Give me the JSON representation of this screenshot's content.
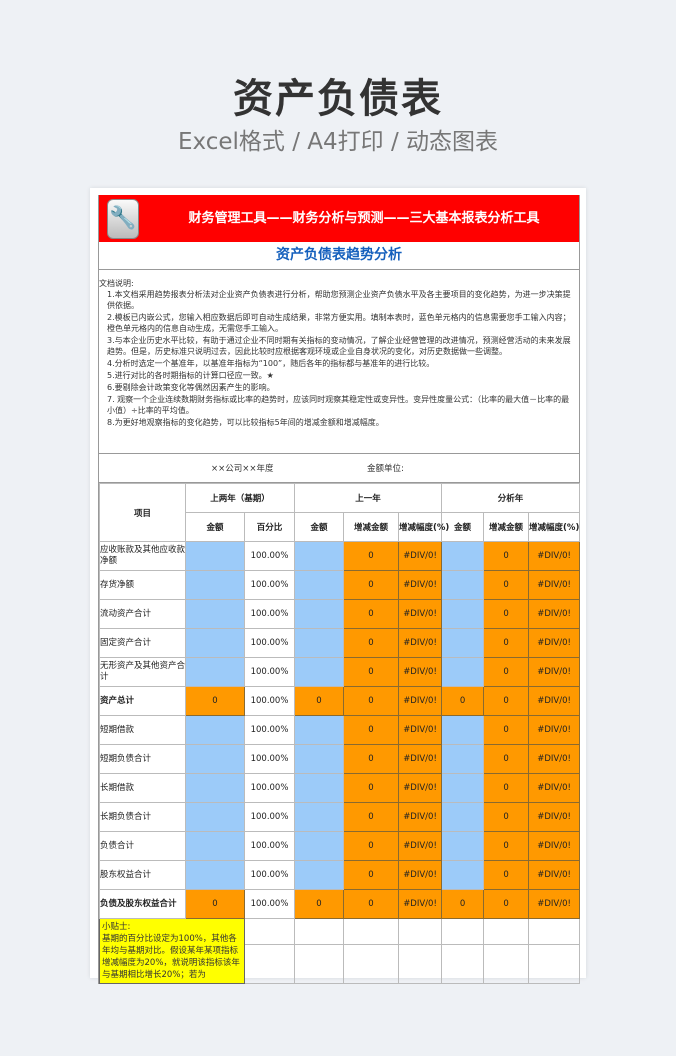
{
  "hero": {
    "title": "资产负债表",
    "subtitle": "Excel格式 / A4打印 / 动态图表"
  },
  "banner": {
    "title": "财务管理工具——财务分析与预测——三大基本报表分析工具",
    "icon": "wrench-icon"
  },
  "sheet_title": "资产负债表趋势分析",
  "notes": {
    "heading": "文档说明:",
    "items": [
      "1.本文档采用趋势报表分析法对企业资产负债表进行分析，帮助您预测企业资产负债水平及各主要项目的变化趋势，为进一步决策提供依据。",
      "2.模板已内嵌公式，您输入相应数据后即可自动生成结果，非常方便实用。填制本表时，蓝色单元格内的信息需要您手工输入内容；橙色单元格内的信息自动生成，无需您手工输入。",
      "3.与本企业历史水平比较，有助于通过企业不同时期有关指标的变动情况，了解企业经营管理的改进情况，预测经营活动的未来发展趋势。但是，历史标准只说明过去，因此比较时应根据客观环境或企业自身状况的变化，对历史数据做一些调整。",
      "4.分析时选定一个基准年，以基准年指标为“100”，随后各年的指标都与基准年的进行比较。",
      "5.进行对比的各时期指标的计算口径应一致。★",
      "6.要剔除会计政策变化等偶然因素产生的影响。",
      "7. 观察一个企业连续数期财务指标或比率的趋势时，应该同时观察其稳定性或变异性。变异性度量公式：（比率的最大值－比率的最小值）÷比率的平均值。",
      "8.为更好地观察指标的变化趋势，可以比较指标5年间的增减金额和增减幅度。"
    ]
  },
  "company": "××公司××年度",
  "unit": "金额单位:",
  "header": {
    "item": "项目",
    "groups": [
      "上两年（基期）",
      "上一年",
      "分析年"
    ],
    "cols": [
      "金额",
      "百分比",
      "金额",
      "增减金额",
      "增减幅度(%)",
      "金额",
      "增减金额",
      "增减幅度(%)"
    ]
  },
  "rows": [
    {
      "label": "应收账款及其他应收款净额",
      "pct": "100.00%",
      "inc": "0",
      "rate": "#DIV/0!",
      "inc2": "0",
      "rate2": "#DIV/0!"
    },
    {
      "label": "存货净额",
      "pct": "100.00%",
      "inc": "0",
      "rate": "#DIV/0!",
      "inc2": "0",
      "rate2": "#DIV/0!"
    },
    {
      "label": "流动资产合计",
      "pct": "100.00%",
      "inc": "0",
      "rate": "#DIV/0!",
      "inc2": "0",
      "rate2": "#DIV/0!"
    },
    {
      "label": "固定资产合计",
      "pct": "100.00%",
      "inc": "0",
      "rate": "#DIV/0!",
      "inc2": "0",
      "rate2": "#DIV/0!"
    },
    {
      "label": "无形资产及其他资产合计",
      "pct": "100.00%",
      "inc": "0",
      "rate": "#DIV/0!",
      "inc2": "0",
      "rate2": "#DIV/0!"
    },
    {
      "label": "资产总计",
      "total": true,
      "amt": "0",
      "pct": "100.00%",
      "amt1": "0",
      "inc": "0",
      "rate": "#DIV/0!",
      "amt2": "0",
      "inc2": "0",
      "rate2": "#DIV/0!"
    },
    {
      "label": "短期借款",
      "pct": "100.00%",
      "inc": "0",
      "rate": "#DIV/0!",
      "inc2": "0",
      "rate2": "#DIV/0!"
    },
    {
      "label": "短期负债合计",
      "pct": "100.00%",
      "inc": "0",
      "rate": "#DIV/0!",
      "inc2": "0",
      "rate2": "#DIV/0!"
    },
    {
      "label": "长期借款",
      "pct": "100.00%",
      "inc": "0",
      "rate": "#DIV/0!",
      "inc2": "0",
      "rate2": "#DIV/0!"
    },
    {
      "label": "长期负债合计",
      "pct": "100.00%",
      "inc": "0",
      "rate": "#DIV/0!",
      "inc2": "0",
      "rate2": "#DIV/0!"
    },
    {
      "label": "负债合计",
      "pct": "100.00%",
      "inc": "0",
      "rate": "#DIV/0!",
      "inc2": "0",
      "rate2": "#DIV/0!"
    },
    {
      "label": "股东权益合计",
      "pct": "100.00%",
      "inc": "0",
      "rate": "#DIV/0!",
      "inc2": "0",
      "rate2": "#DIV/0!"
    },
    {
      "label": "负债及股东权益合计",
      "total": true,
      "amt": "0",
      "pct": "100.00%",
      "amt1": "0",
      "inc": "0",
      "rate": "#DIV/0!",
      "amt2": "0",
      "inc2": "0",
      "rate2": "#DIV/0!"
    }
  ],
  "tip": {
    "heading": "小贴士:",
    "text": "基期的百分比设定为100%，其他各年均与基期对比。假设某年某项指标增减幅度为20%，就说明该指标该年与基期相比增长20%；若为"
  },
  "colors": {
    "input": "#9ccbf9",
    "formula": "#ff9900",
    "banner": "#ff0000",
    "tip": "#ffff00"
  }
}
